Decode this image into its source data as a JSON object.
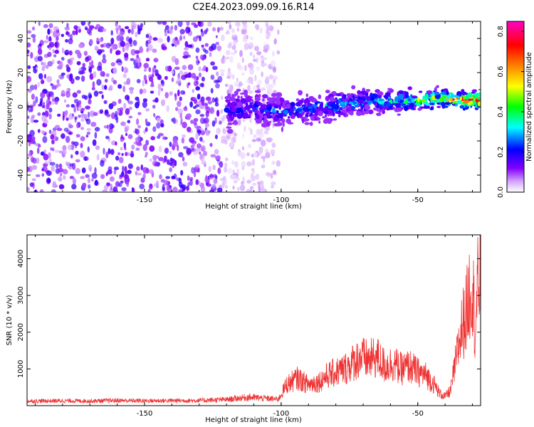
{
  "figure": {
    "title": "C2E4.2023.099.09.16.R14"
  },
  "chart_data": [
    {
      "type": "heatmap",
      "xlabel": "Height of straight line (km)",
      "ylabel": "Frequency (Hz)",
      "xlim": [
        -193,
        -27
      ],
      "ylim": [
        -50,
        50
      ],
      "xticks": [
        -150,
        -100,
        -50
      ],
      "yticks": [
        -40,
        -20,
        0,
        20,
        40
      ],
      "noise_region": {
        "x": [
          -193,
          -101
        ],
        "level": 0.15
      },
      "signal": {
        "points": [
          {
            "x": -120,
            "y": -2,
            "amp": 0.22
          },
          {
            "x": -110,
            "y": -1,
            "amp": 0.25
          },
          {
            "x": -100,
            "y": -3,
            "amp": 0.3
          },
          {
            "x": -90,
            "y": -1,
            "amp": 0.3
          },
          {
            "x": -80,
            "y": 1,
            "amp": 0.33
          },
          {
            "x": -70,
            "y": 3,
            "amp": 0.35
          },
          {
            "x": -60,
            "y": 3,
            "amp": 0.4
          },
          {
            "x": -50,
            "y": 4,
            "amp": 0.5
          },
          {
            "x": -40,
            "y": 5,
            "amp": 0.7
          },
          {
            "x": -30,
            "y": 4,
            "amp": 0.85
          }
        ]
      },
      "colorbar": {
        "label": "Normalized spectral amplitude",
        "range": [
          0,
          0.85
        ],
        "ticks": [
          0.0,
          0.2,
          0.4,
          0.6,
          0.8
        ],
        "colors": [
          "#ffffff",
          "#cc99ff",
          "#8000ff",
          "#0000ff",
          "#00ffff",
          "#00ff00",
          "#ffff00",
          "#ff8000",
          "#ff0000",
          "#ff00cc"
        ]
      }
    },
    {
      "type": "line",
      "xlabel": "Height of straight line (km)",
      "ylabel": "SNR (10 * v/v)",
      "xlim": [
        -193,
        -27
      ],
      "ylim": [
        0,
        4650
      ],
      "xticks": [
        -150,
        -100,
        -50
      ],
      "yticks": [
        1000,
        2000,
        3000,
        4000
      ],
      "color": "#ee3333",
      "series": [
        {
          "x": [
            -193,
            -180,
            -170,
            -160,
            -150,
            -140,
            -130,
            -120,
            -112,
            -101,
            -98,
            -94,
            -90,
            -86,
            -83,
            -80,
            -77,
            -74,
            -71,
            -68,
            -65,
            -62,
            -59,
            -56,
            -53,
            -50,
            -47,
            -44,
            -42,
            -40,
            -38,
            -36,
            -34,
            -32,
            -31,
            -30,
            -29,
            -28,
            -27
          ],
          "y": [
            150,
            160,
            155,
            170,
            160,
            165,
            170,
            200,
            280,
            210,
            700,
            900,
            700,
            800,
            1000,
            1100,
            1200,
            1400,
            1600,
            1500,
            1600,
            1300,
            1400,
            1200,
            1300,
            1100,
            1000,
            700,
            400,
            300,
            500,
            1500,
            2500,
            3200,
            3800,
            4200,
            2500,
            3900,
            4500
          ]
        }
      ]
    }
  ]
}
